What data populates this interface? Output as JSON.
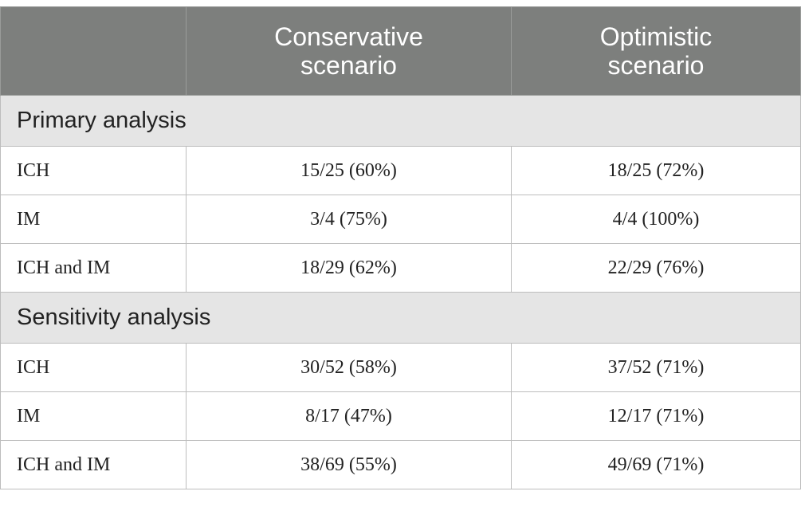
{
  "header": {
    "col0": "",
    "col1": "Conservative\nscenario",
    "col2": "Optimistic\nscenario"
  },
  "sections": [
    {
      "title": "Primary analysis",
      "rows": [
        {
          "label": "ICH",
          "conservative": "15/25 (60%)",
          "optimistic": "18/25 (72%)"
        },
        {
          "label": "IM",
          "conservative": "3/4 (75%)",
          "optimistic": "4/4 (100%)"
        },
        {
          "label": "ICH and IM",
          "conservative": "18/29 (62%)",
          "optimistic": "22/29 (76%)"
        }
      ]
    },
    {
      "title": "Sensitivity analysis",
      "rows": [
        {
          "label": "ICH",
          "conservative": "30/52 (58%)",
          "optimistic": "37/52 (71%)"
        },
        {
          "label": "IM",
          "conservative": "8/17 (47%)",
          "optimistic": "12/17 (71%)"
        },
        {
          "label": "ICH and IM",
          "conservative": "38/69 (55%)",
          "optimistic": "49/69 (71%)"
        }
      ]
    }
  ],
  "colors": {
    "header_bg": "#7d7f7d",
    "section_bg": "#e5e5e5",
    "border": "#bdbdbd"
  }
}
